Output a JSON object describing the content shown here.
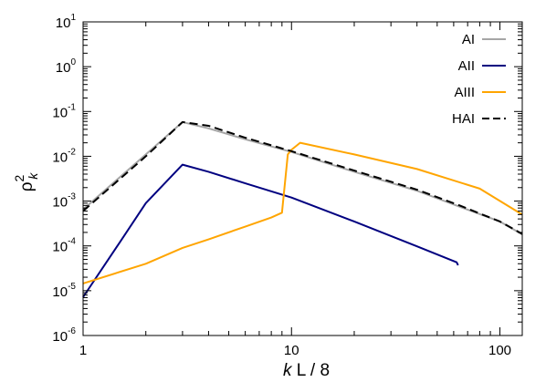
{
  "chart_data": {
    "type": "line",
    "xlabel": "k L / 8",
    "ylabel": "ρ2k",
    "xscale": "log",
    "yscale": "log",
    "xlim": [
      1,
      128
    ],
    "ylim": [
      1e-06,
      10
    ],
    "grid": false,
    "legend_position": "top-right",
    "x_ticks": [
      {
        "value": 1,
        "label": "1"
      },
      {
        "value": 10,
        "label": "10"
      },
      {
        "value": 100,
        "label": "100"
      }
    ],
    "y_ticks": [
      {
        "value": 1e-06,
        "base": "10",
        "exp": "-6"
      },
      {
        "value": 1e-05,
        "base": "10",
        "exp": "-5"
      },
      {
        "value": 0.0001,
        "base": "10",
        "exp": "-4"
      },
      {
        "value": 0.001,
        "base": "10",
        "exp": "-3"
      },
      {
        "value": 0.01,
        "base": "10",
        "exp": "-2"
      },
      {
        "value": 0.1,
        "base": "10",
        "exp": "-1"
      },
      {
        "value": 1,
        "base": "10",
        "exp": "0"
      },
      {
        "value": 10,
        "base": "10",
        "exp": "1"
      }
    ],
    "series": [
      {
        "name": "AI",
        "color": "#a6a6a6",
        "dash": "solid",
        "points": [
          [
            1,
            0.00065
          ],
          [
            2,
            0.011
          ],
          [
            3,
            0.058
          ],
          [
            4,
            0.042
          ],
          [
            6,
            0.024
          ],
          [
            10,
            0.0125
          ],
          [
            20,
            0.0045
          ],
          [
            40,
            0.0017
          ],
          [
            64,
            0.00075
          ],
          [
            100,
            0.00035
          ],
          [
            128,
            0.00018
          ]
        ]
      },
      {
        "name": "AII",
        "color": "#000080",
        "dash": "solid",
        "points": [
          [
            1,
            7.2e-06
          ],
          [
            1.5,
            0.00012
          ],
          [
            2,
            0.0009
          ],
          [
            3,
            0.0065
          ],
          [
            4,
            0.0045
          ],
          [
            6,
            0.0025
          ],
          [
            10,
            0.0012
          ],
          [
            20,
            0.00035
          ],
          [
            40,
            9.8e-05
          ],
          [
            62,
            4.3e-05
          ],
          [
            63,
            3.7e-05
          ]
        ]
      },
      {
        "name": "AIII",
        "color": "#ffa500",
        "dash": "solid",
        "points": [
          [
            1,
            1.45e-05
          ],
          [
            2,
            4e-05
          ],
          [
            3,
            9e-05
          ],
          [
            4,
            0.00014
          ],
          [
            6,
            0.00027
          ],
          [
            8,
            0.00043
          ],
          [
            9,
            0.00055
          ],
          [
            9.6,
            0.011
          ],
          [
            10,
            0.014
          ],
          [
            11,
            0.02
          ],
          [
            20,
            0.011
          ],
          [
            40,
            0.0052
          ],
          [
            80,
            0.0019
          ],
          [
            128,
            0.0005
          ]
        ]
      },
      {
        "name": "HAI",
        "color": "#000000",
        "dash": "dashed",
        "points": [
          [
            1,
            0.0006
          ],
          [
            2,
            0.01
          ],
          [
            3,
            0.058
          ],
          [
            4,
            0.048
          ],
          [
            6,
            0.026
          ],
          [
            10,
            0.013
          ],
          [
            20,
            0.0048
          ],
          [
            40,
            0.0018
          ],
          [
            64,
            0.0008
          ],
          [
            100,
            0.00035
          ],
          [
            128,
            0.000185
          ]
        ]
      }
    ]
  }
}
